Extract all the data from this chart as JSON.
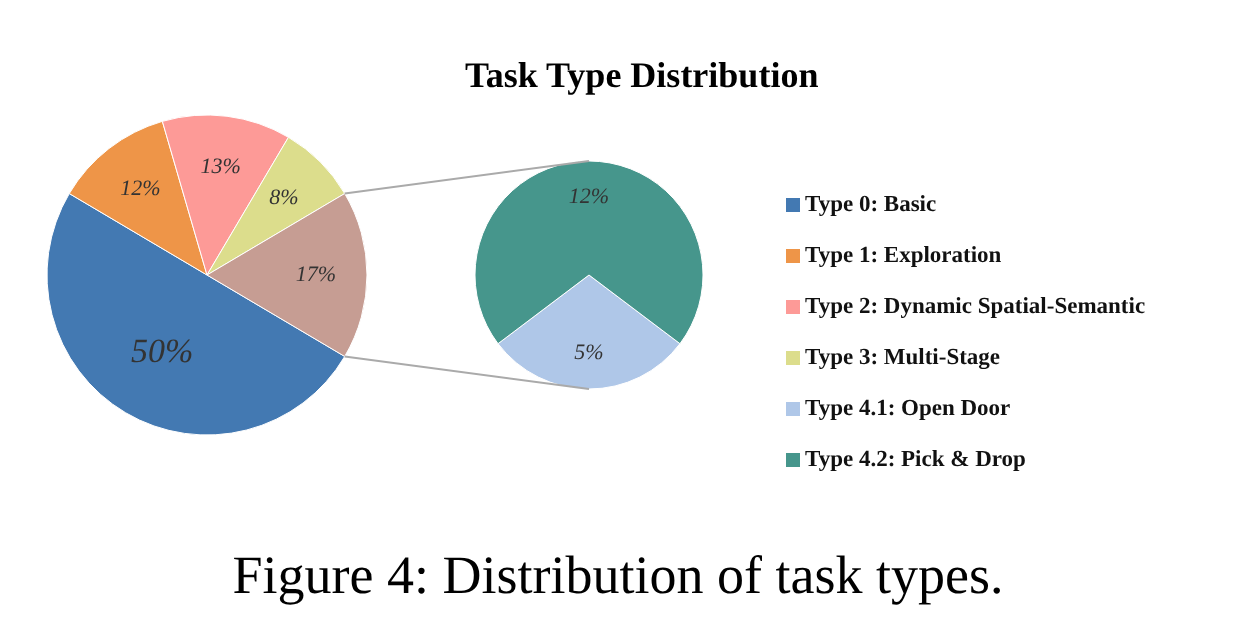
{
  "chart_data": [
    {
      "type": "pie",
      "title": "Task Type Distribution",
      "categories": [
        "Type 0: Basic",
        "Type 1: Exploration",
        "Type 2: Dynamic Spatial-Semantic",
        "Type 3: Multi-Stage",
        null
      ],
      "values": [
        50,
        12,
        13,
        8,
        17
      ],
      "colors": [
        "#4379b2",
        "#ee9548",
        "#fd9a97",
        "#dcdd8c",
        "#c69d93"
      ],
      "value_labels": [
        "50%",
        "12%",
        "13%",
        "8%",
        "17%"
      ],
      "legend": "right",
      "annotations": [
        "Figure 4: Distribution of task types."
      ]
    },
    {
      "type": "pie",
      "categories": [
        "Type 4.1: Open Door",
        "Type 4.2: Pick & Drop"
      ],
      "values": [
        5,
        12
      ],
      "colors": [
        "#afc7e8",
        "#46968c"
      ],
      "value_labels": [
        "5%",
        "12%"
      ],
      "legend": "right"
    }
  ]
}
